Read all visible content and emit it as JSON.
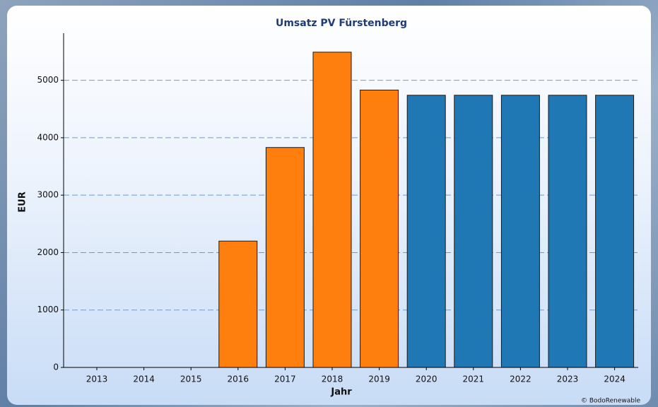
{
  "chart_data": {
    "type": "bar",
    "title": "Umsatz PV Fürstenberg",
    "x_label": "Jahr",
    "y_label": "EUR",
    "copyright": "© BodoRenewable",
    "categories": [
      "2013",
      "2014",
      "2015",
      "2016",
      "2017",
      "2018",
      "2019",
      "2020",
      "2021",
      "2022",
      "2023",
      "2024"
    ],
    "values": [
      null,
      null,
      null,
      2200,
      3830,
      5490,
      4830,
      4740,
      4740,
      4740,
      4740,
      4740
    ],
    "colors": [
      "#ff7f0e",
      "#ff7f0e",
      "#ff7f0e",
      "#ff7f0e",
      "#ff7f0e",
      "#ff7f0e",
      "#ff7f0e",
      "#1f77b4",
      "#1f77b4",
      "#1f77b4",
      "#1f77b4",
      "#1f77b4"
    ],
    "ylim": [
      0,
      5820
    ],
    "yticks": [
      0,
      1000,
      2000,
      3000,
      4000,
      5000
    ],
    "grid": true
  }
}
